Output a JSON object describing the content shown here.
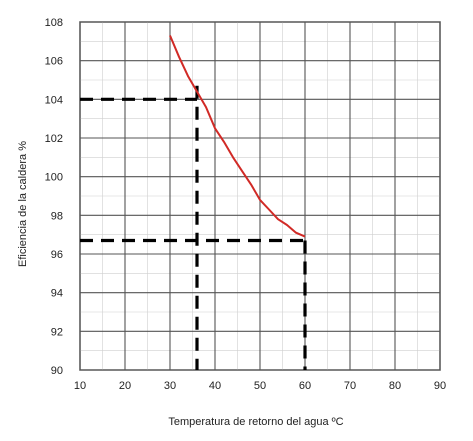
{
  "chart_data": {
    "type": "line",
    "title": "",
    "xlabel": "Temperatura de retorno del agua ºC",
    "ylabel": "Eficiencia de la caldera %",
    "xlim": [
      10,
      90
    ],
    "ylim": [
      90,
      108
    ],
    "xticks": [
      10,
      20,
      30,
      40,
      50,
      60,
      70,
      80,
      90
    ],
    "yticks": [
      90,
      92,
      94,
      96,
      98,
      100,
      102,
      104,
      106,
      108
    ],
    "grid": true,
    "series": [
      {
        "color": "#d12a26",
        "x": [
          30,
          32,
          34,
          36,
          38,
          40,
          42,
          44,
          46,
          48,
          50,
          52,
          54,
          56,
          58,
          60
        ],
        "y": [
          107.3,
          106.2,
          105.2,
          104.4,
          103.6,
          102.5,
          101.8,
          101.0,
          100.3,
          99.6,
          98.8,
          98.3,
          97.8,
          97.5,
          97.1,
          96.9
        ]
      }
    ],
    "reference_lines": [
      {
        "color": "#000000",
        "points": [
          [
            10,
            104.0
          ],
          [
            36,
            104.0
          ]
        ]
      },
      {
        "color": "#000000",
        "points": [
          [
            36,
            104.7
          ],
          [
            36,
            90
          ]
        ]
      },
      {
        "color": "#000000",
        "points": [
          [
            10,
            96.7
          ],
          [
            60,
            96.7
          ]
        ]
      },
      {
        "color": "#000000",
        "points": [
          [
            60,
            96.7
          ],
          [
            60,
            90
          ]
        ]
      }
    ]
  }
}
